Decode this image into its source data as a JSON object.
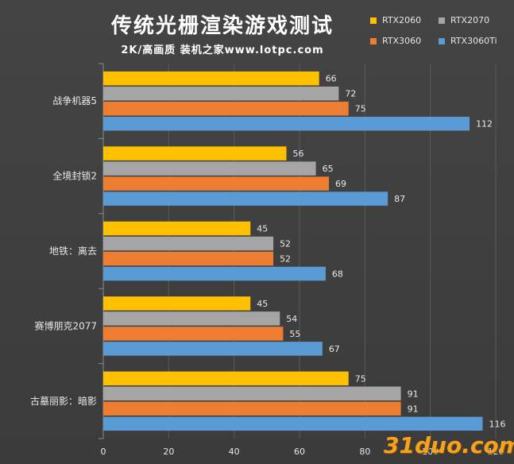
{
  "title": "传统光栅渲染游戏测试",
  "subtitle": "2K/高画质  装机之家www.lotpc.com",
  "watermark": "31duo.com",
  "chart_data": {
    "type": "bar",
    "orientation": "horizontal",
    "categories": [
      "战争机器5",
      "全境封锁2",
      "地铁：离去",
      "赛博朋克2077",
      "古墓丽影：暗影"
    ],
    "series": [
      {
        "name": "RTX2060",
        "color": "#ffc000",
        "values": [
          66,
          56,
          45,
          45,
          75
        ]
      },
      {
        "name": "RTX2070",
        "color": "#a5a5a5",
        "values": [
          72,
          65,
          52,
          54,
          91
        ]
      },
      {
        "name": "RTX3060",
        "color": "#ed7d31",
        "values": [
          75,
          69,
          52,
          55,
          91
        ]
      },
      {
        "name": "RTX3060Ti",
        "color": "#5b9bd5",
        "values": [
          112,
          87,
          68,
          67,
          116
        ]
      }
    ],
    "xlim": [
      0,
      120
    ],
    "xticks": [
      0,
      20,
      40,
      60,
      80,
      100,
      120
    ],
    "grid": true,
    "legend_position": "top-right"
  }
}
